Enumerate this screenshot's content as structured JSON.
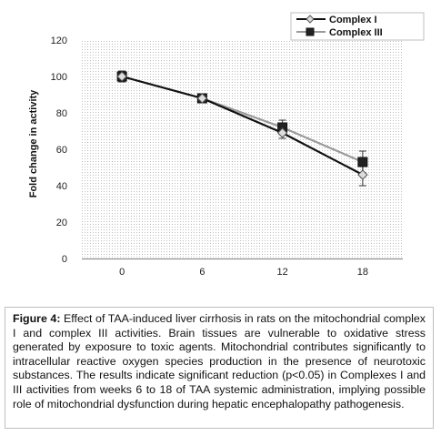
{
  "chart_data": {
    "type": "line",
    "title": "",
    "xlabel": "",
    "ylabel": "Fold change in activity",
    "x": [
      0,
      6,
      12,
      18
    ],
    "xlim": [
      -3,
      21
    ],
    "ylim": [
      0,
      120
    ],
    "yticks": [
      0,
      20,
      40,
      60,
      80,
      100,
      120
    ],
    "grid": "dotted plot area",
    "legend_position": "top-right",
    "series": [
      {
        "name": "Complex I",
        "marker": "diamond",
        "line_color": "#111111",
        "marker_fill": "#dddddd",
        "values": [
          100,
          88,
          69,
          46
        ],
        "errors": [
          3,
          2,
          3,
          6
        ]
      },
      {
        "name": "Complex III",
        "marker": "square",
        "line_color": "#9a9a9a",
        "marker_fill": "#222222",
        "values": [
          100,
          88,
          72,
          53
        ],
        "errors": [
          3,
          2,
          4,
          6
        ]
      }
    ]
  },
  "caption": {
    "label": "Figure 4:",
    "text": " Effect of TAA-induced liver cirrhosis in rats on the mitochondrial complex I and complex III activities. Brain tissues are vulnerable to oxidative stress generated by exposure to toxic agents. Mitochondrial contributes significantly to intracellular reactive oxygen species production in the presence of neurotoxic substances. The results indicate significant reduction (p<0.05) in Complexes I and III activities from weeks 6 to 18 of TAA systemic administration, implying possible role of mitochondrial dysfunction during hepatic encephalopathy pathogenesis."
  }
}
